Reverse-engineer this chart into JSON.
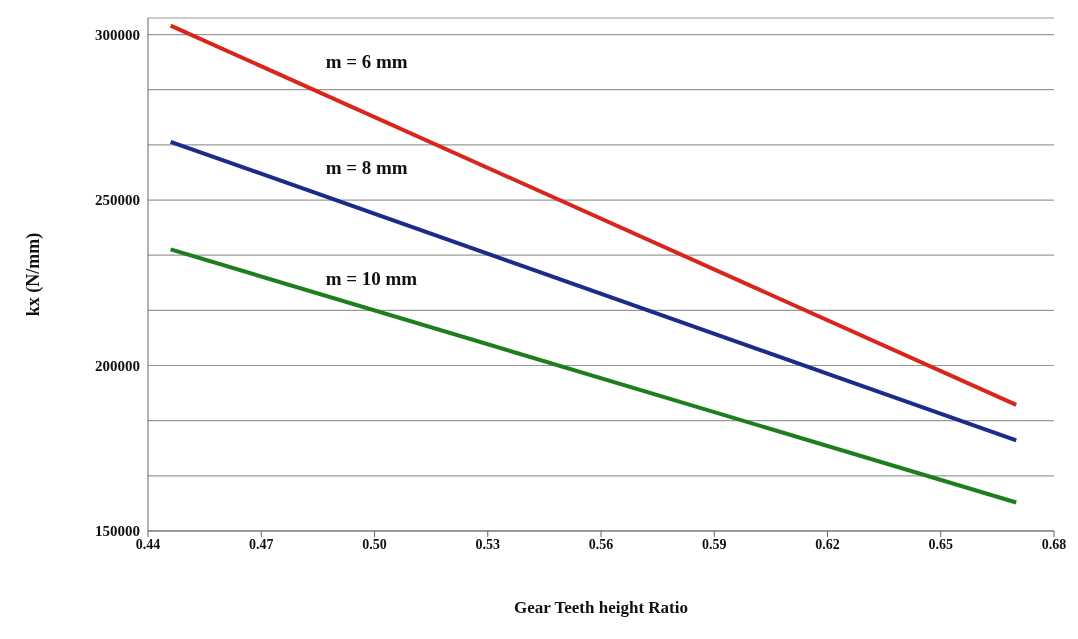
{
  "chart_data": {
    "type": "line",
    "xlabel": "Gear Teeth height Ratio",
    "ylabel": "kx (N/mm)",
    "x": [
      0.446,
      0.67
    ],
    "series": [
      {
        "name": "m = 6 mm",
        "color": "#d9261c",
        "values": [
          302700,
          188100
        ]
      },
      {
        "name": "m = 8 mm",
        "color": "#1c2a8c",
        "values": [
          267600,
          177400
        ]
      },
      {
        "name": "m = 10 mm",
        "color": "#1e7d1e",
        "values": [
          235100,
          158600
        ]
      }
    ],
    "xlim": [
      0.44,
      0.68
    ],
    "xticks": [
      {
        "value": 0.44,
        "label": "0.44"
      },
      {
        "value": 0.47,
        "label": "0.47"
      },
      {
        "value": 0.5,
        "label": "0.50"
      },
      {
        "value": 0.53,
        "label": "0.53"
      },
      {
        "value": 0.56,
        "label": "0.56"
      },
      {
        "value": 0.59,
        "label": "0.59"
      },
      {
        "value": 0.62,
        "label": "0.62"
      },
      {
        "value": 0.65,
        "label": "0.65"
      },
      {
        "value": 0.68,
        "label": "0.68"
      }
    ],
    "ylim": [
      150000,
      305000
    ],
    "yticks": [
      150000,
      {
        "value": 166667,
        "label": null
      },
      {
        "value": 183333,
        "label": null
      },
      200000,
      {
        "value": 216667,
        "label": null
      },
      {
        "value": 233333,
        "label": null
      },
      250000,
      {
        "value": 266667,
        "label": null
      },
      {
        "value": 283333,
        "label": null
      },
      300000
    ],
    "grid": "y",
    "legend": false,
    "marker": "none",
    "line_style": "solid"
  }
}
